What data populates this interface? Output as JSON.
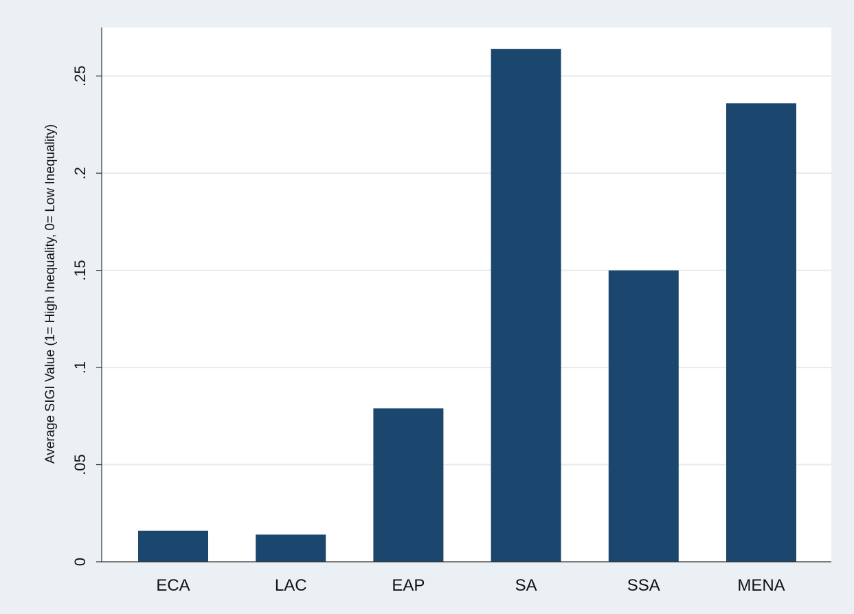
{
  "chart_data": {
    "type": "bar",
    "categories": [
      "ECA",
      "LAC",
      "EAP",
      "SA",
      "SSA",
      "MENA"
    ],
    "values": [
      0.016,
      0.014,
      0.079,
      0.264,
      0.15,
      0.236
    ],
    "title": "",
    "xlabel": "",
    "ylabel": "Average SIGI Value (1= High Inequality, 0= Low Inequality)",
    "ylim": [
      0,
      0.275
    ],
    "yticks": [
      {
        "value": 0,
        "label": "0"
      },
      {
        "value": 0.05,
        "label": ".05"
      },
      {
        "value": 0.1,
        "label": ".1"
      },
      {
        "value": 0.15,
        "label": ".15"
      },
      {
        "value": 0.2,
        "label": ".2"
      },
      {
        "value": 0.25,
        "label": ".25"
      }
    ],
    "grid": true,
    "legend": "none",
    "colors": {
      "bar": "#1b466d",
      "plot_background": "#ffffff",
      "outer_background": "#eaf0f3",
      "grid": "#e4ebee",
      "axis": "#333333"
    }
  }
}
